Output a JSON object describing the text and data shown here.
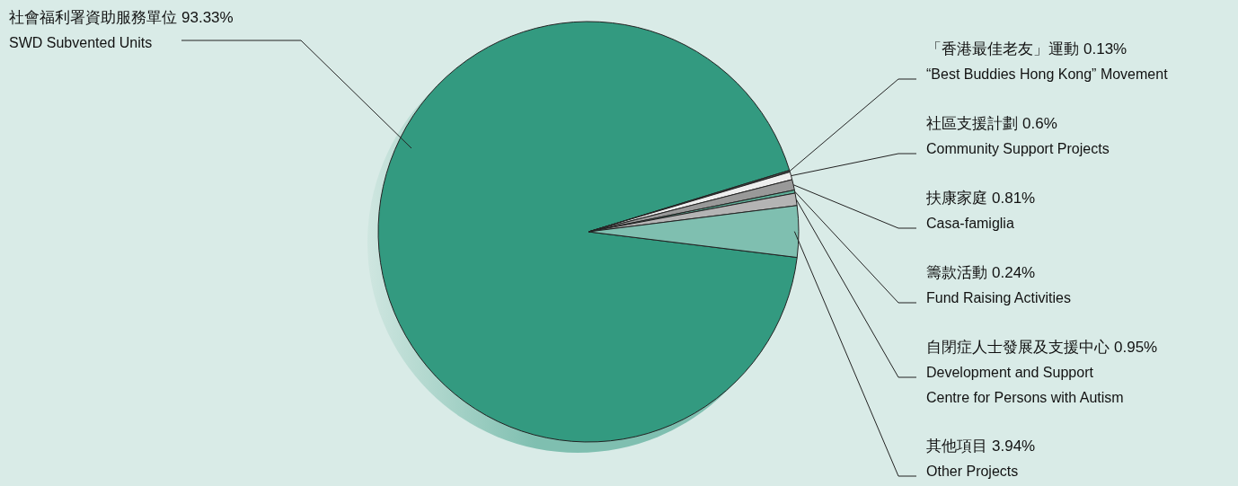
{
  "chart_data": {
    "type": "pie",
    "categories": [
      "社會福利署資助服務單位\nSWD Subvented Units",
      "「香港最佳老友」運動\n“Best Buddies Hong Kong”  Movement",
      "社區支援計劃\nCommunity Support Projects",
      "扶康家庭\nCasa-famiglia",
      "籌款活動\nFund Raising Activities",
      "自閉症人士發展及支援中心\nDevelopment and Support\nCentre for Persons with Autism",
      "其他項目\nOther Projects"
    ],
    "values": [
      93.33,
      0.13,
      0.6,
      0.81,
      0.24,
      0.95,
      3.94
    ],
    "value_labels": [
      "93.33%",
      "0.13%",
      "0.6%",
      "0.81%",
      "0.24%",
      "0.95%",
      "3.94%"
    ],
    "colors": [
      "#339a80",
      "#555555",
      "#eeeeee",
      "#999999",
      "#5fae98",
      "#b4b4b4",
      "#7fbfb0"
    ]
  }
}
